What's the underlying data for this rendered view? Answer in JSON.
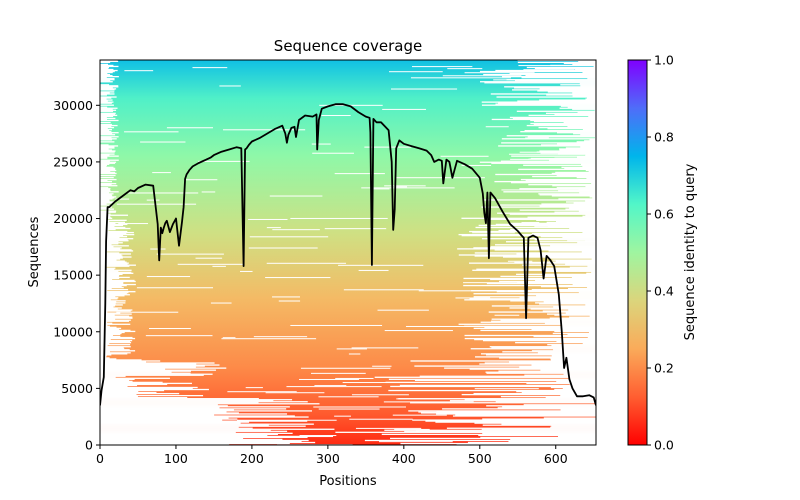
{
  "chart_data": {
    "type": "heatmap",
    "title": "Sequence coverage",
    "xlabel": "Positions",
    "ylabel": "Sequences",
    "xlim": [
      0,
      653
    ],
    "ylim": [
      0,
      34000
    ],
    "x_ticks": [
      0,
      100,
      200,
      300,
      400,
      500,
      600
    ],
    "x_tick_labels": [
      "0",
      "100",
      "200",
      "300",
      "400",
      "500",
      "600"
    ],
    "y_ticks": [
      0,
      5000,
      10000,
      15000,
      20000,
      25000,
      30000
    ],
    "y_tick_labels": [
      "0",
      "5000",
      "10000",
      "15000",
      "20000",
      "25000",
      "30000"
    ],
    "grid": false,
    "colorbar": {
      "label": "Sequence identity to query",
      "range": [
        0,
        1
      ],
      "ticks": [
        0.0,
        0.2,
        0.4,
        0.6,
        0.8,
        1.0
      ],
      "tick_labels": [
        "0.0",
        "0.2",
        "0.4",
        "0.6",
        "0.8",
        "1.0"
      ],
      "colormap": "rainbow_r",
      "stops": [
        "#ff0000",
        "#ff5e31",
        "#faab5a",
        "#dbd57c",
        "#9ff5a0",
        "#52f6c8",
        "#00b5eb",
        "#4f6df9",
        "#8000ff"
      ]
    },
    "coverage_line": {
      "name": "coverage",
      "color": "#000000",
      "x": [
        0,
        2,
        5,
        7,
        8,
        10,
        12,
        20,
        30,
        40,
        45,
        50,
        60,
        70,
        76,
        78,
        80,
        82,
        84,
        86,
        88,
        92,
        96,
        100,
        104,
        108,
        110,
        112,
        114,
        116,
        118,
        122,
        130,
        140,
        146,
        150,
        160,
        170,
        180,
        186,
        189,
        191,
        193,
        196,
        200,
        210,
        220,
        230,
        240,
        244,
        246,
        248,
        252,
        256,
        258,
        262,
        270,
        280,
        285,
        286,
        288,
        292,
        300,
        310,
        320,
        330,
        340,
        350,
        355,
        356,
        358,
        360,
        364,
        370,
        380,
        384,
        386,
        388,
        390,
        394,
        400,
        410,
        420,
        430,
        436,
        440,
        446,
        450,
        452,
        456,
        460,
        464,
        470,
        480,
        490,
        500,
        504,
        506,
        508,
        510,
        512,
        514,
        520,
        530,
        540,
        550,
        555,
        558,
        561,
        564,
        570,
        576,
        580,
        584,
        588,
        592,
        598,
        604,
        608,
        611,
        614,
        618,
        622,
        628,
        636,
        644,
        650,
        653
      ],
      "y": [
        3500,
        4800,
        6000,
        12500,
        18000,
        21000,
        21000,
        21500,
        22000,
        22500,
        22400,
        22700,
        23000,
        22900,
        19500,
        16300,
        19200,
        18700,
        19200,
        19600,
        19800,
        18800,
        19500,
        20000,
        17600,
        19700,
        21000,
        23500,
        23900,
        24100,
        24300,
        24600,
        24900,
        25200,
        25400,
        25600,
        25900,
        26100,
        26300,
        26200,
        15800,
        26100,
        26200,
        26500,
        26800,
        27100,
        27500,
        27900,
        28200,
        27500,
        26700,
        27400,
        28000,
        28100,
        27200,
        28700,
        29100,
        29000,
        29200,
        26100,
        28700,
        29700,
        29900,
        30100,
        30100,
        29900,
        29400,
        29000,
        28900,
        27600,
        15900,
        28800,
        28500,
        28500,
        27800,
        25000,
        19000,
        20800,
        26200,
        26900,
        26600,
        26400,
        26200,
        26000,
        25600,
        25000,
        25200,
        25100,
        23100,
        25200,
        25000,
        23600,
        25100,
        24800,
        24400,
        23600,
        22200,
        20500,
        19600,
        22300,
        16500,
        22300,
        21800,
        20600,
        19500,
        18900,
        18500,
        18300,
        11200,
        18300,
        18500,
        18300,
        17200,
        14700,
        16700,
        16400,
        15800,
        13300,
        10000,
        6800,
        7700,
        5800,
        5000,
        4300,
        4300,
        4400,
        4200,
        3500
      ]
    }
  }
}
